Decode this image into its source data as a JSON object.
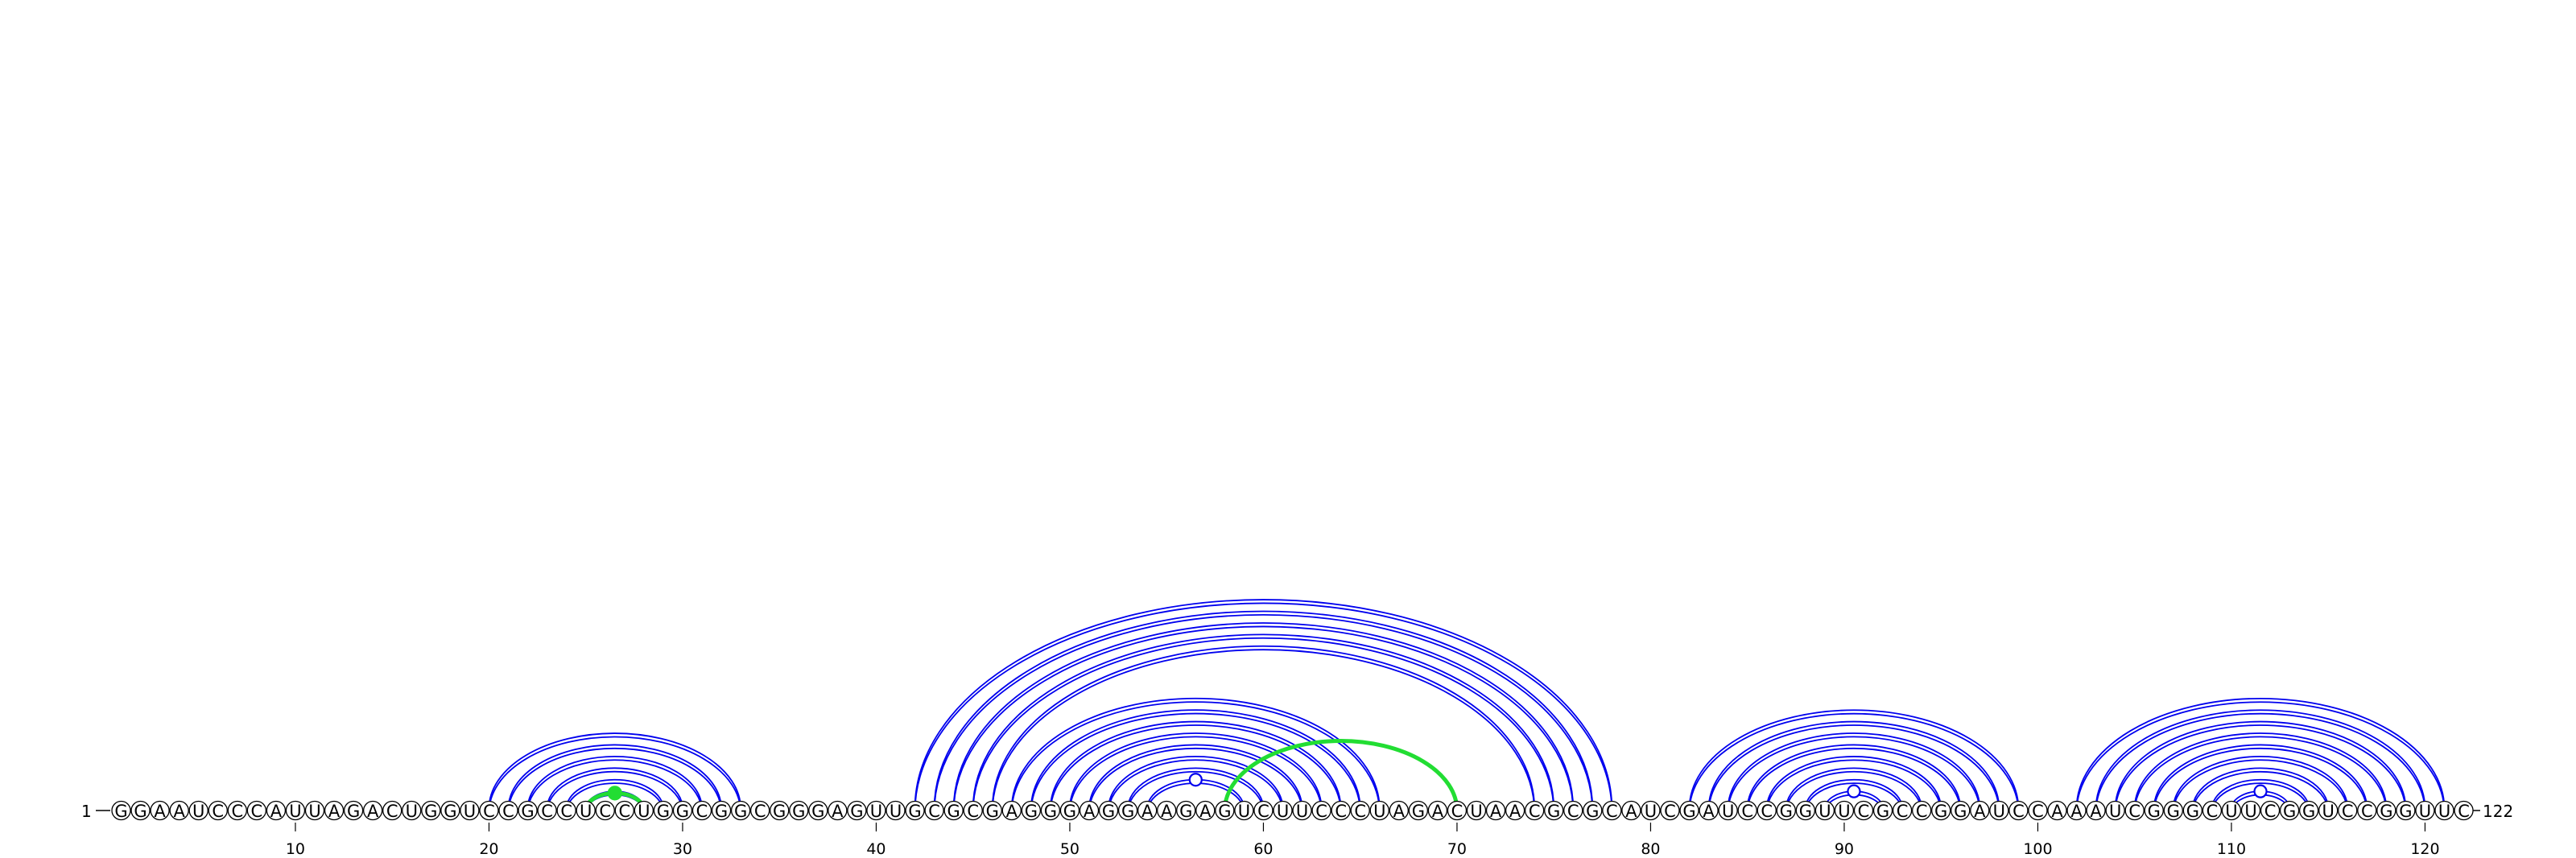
{
  "diagram": {
    "type": "rna-arc-diagram",
    "sequence": "GGAAUCCCAUUAGACUGGUCCGCCUCCUGGCGGCGGGAGUUGCGCGAGGGAGGAAGAGUCUUCCCUAGACUAACGCGCAUCGAUCCGGUUCGCCGGAUCCAAAUCGGGCUUCGGUCCGGUUC",
    "start_label": "1",
    "end_label": "122",
    "ticks": [
      "10",
      "20",
      "30",
      "40",
      "50",
      "60",
      "70",
      "80",
      "90",
      "100",
      "110",
      "120"
    ],
    "colors": {
      "blue_arcs": "#0000ee",
      "green_arcs": "#22dd33",
      "nucleotide_outline": "#000000"
    },
    "blue_helices": [
      {
        "pairs": [
          [
            20,
            33
          ],
          [
            21,
            32
          ],
          [
            22,
            31
          ],
          [
            23,
            30
          ],
          [
            24,
            29
          ],
          [
            25,
            28
          ]
        ]
      },
      {
        "pairs": [
          [
            42,
            78
          ],
          [
            43,
            77
          ],
          [
            44,
            76
          ],
          [
            45,
            75
          ],
          [
            46,
            74
          ]
        ]
      },
      {
        "pairs": [
          [
            47,
            66
          ],
          [
            48,
            65
          ],
          [
            49,
            64
          ],
          [
            50,
            63
          ],
          [
            51,
            62
          ],
          [
            52,
            61
          ],
          [
            53,
            60
          ],
          [
            54,
            59
          ]
        ]
      },
      {
        "pairs": [
          [
            82,
            99
          ],
          [
            83,
            98
          ],
          [
            84,
            97
          ],
          [
            85,
            96
          ],
          [
            86,
            95
          ],
          [
            87,
            94
          ],
          [
            88,
            93
          ],
          [
            89,
            92
          ]
        ]
      },
      {
        "pairs": [
          [
            102,
            121
          ],
          [
            103,
            120
          ],
          [
            104,
            119
          ],
          [
            105,
            118
          ],
          [
            106,
            117
          ],
          [
            107,
            116
          ],
          [
            108,
            115
          ],
          [
            109,
            114
          ],
          [
            110,
            113
          ]
        ]
      }
    ],
    "green_helices": [
      {
        "pairs": [
          [
            25,
            28
          ]
        ]
      },
      {
        "pairs": [
          [
            58,
            70
          ]
        ]
      }
    ],
    "markers": [
      {
        "position": 26.5,
        "series": "green",
        "filled": true
      },
      {
        "position": 56.5,
        "series": "blue",
        "filled": false
      },
      {
        "position": 90.5,
        "series": "blue",
        "filled": false
      },
      {
        "position": 111.5,
        "series": "blue",
        "filled": false
      }
    ]
  }
}
